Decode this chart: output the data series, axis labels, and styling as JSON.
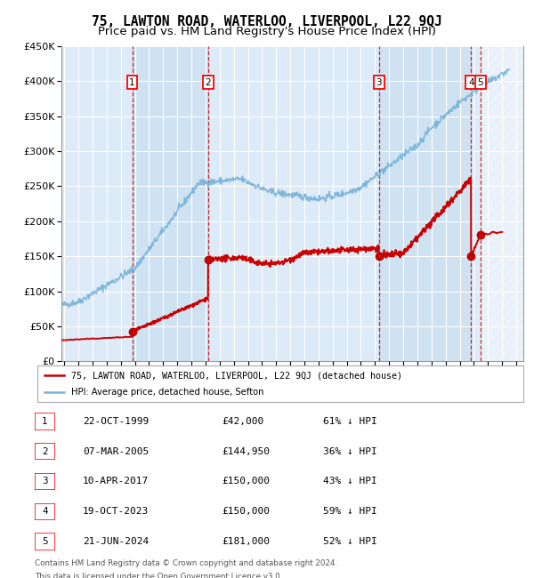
{
  "title": "75, LAWTON ROAD, WATERLOO, LIVERPOOL, L22 9QJ",
  "subtitle": "Price paid vs. HM Land Registry's House Price Index (HPI)",
  "ylim": [
    0,
    450000
  ],
  "yticks": [
    0,
    50000,
    100000,
    150000,
    200000,
    250000,
    300000,
    350000,
    400000,
    450000
  ],
  "ytick_labels": [
    "£0",
    "£50K",
    "£100K",
    "£150K",
    "£200K",
    "£250K",
    "£300K",
    "£350K",
    "£400K",
    "£450K"
  ],
  "xlim_start": 1994.8,
  "xlim_end": 2027.5,
  "hpi_color": "#7ab3d9",
  "price_color": "#cc0000",
  "dashed_line_color": "#cc0000",
  "plot_bg_color": "#ddeaf7",
  "grid_color": "#ffffff",
  "shade_pair_color": "#c5ddf0",
  "hatch_color": "#cccccc",
  "title_fontsize": 10.5,
  "subtitle_fontsize": 9.5,
  "tick_fontsize": 8,
  "transactions": [
    {
      "num": 1,
      "date": "22-OCT-1999",
      "price": 42000,
      "year": 1999.81
    },
    {
      "num": 2,
      "date": "07-MAR-2005",
      "price": 144950,
      "year": 2005.18
    },
    {
      "num": 3,
      "date": "10-APR-2017",
      "price": 150000,
      "year": 2017.28
    },
    {
      "num": 4,
      "date": "19-OCT-2023",
      "price": 150000,
      "year": 2023.8
    },
    {
      "num": 5,
      "date": "21-JUN-2024",
      "price": 181000,
      "year": 2024.47
    }
  ],
  "legend_line1": "75, LAWTON ROAD, WATERLOO, LIVERPOOL, L22 9QJ (detached house)",
  "legend_line2": "HPI: Average price, detached house, Sefton",
  "footer1": "Contains HM Land Registry data © Crown copyright and database right 2024.",
  "footer2": "This data is licensed under the Open Government Licence v3.0.",
  "table_rows": [
    [
      "1",
      "22-OCT-1999",
      "£42,000",
      "61% ↓ HPI"
    ],
    [
      "2",
      "07-MAR-2005",
      "£144,950",
      "36% ↓ HPI"
    ],
    [
      "3",
      "10-APR-2017",
      "£150,000",
      "43% ↓ HPI"
    ],
    [
      "4",
      "19-OCT-2023",
      "£150,000",
      "59% ↓ HPI"
    ],
    [
      "5",
      "21-JUN-2024",
      "£181,000",
      "52% ↓ HPI"
    ]
  ]
}
